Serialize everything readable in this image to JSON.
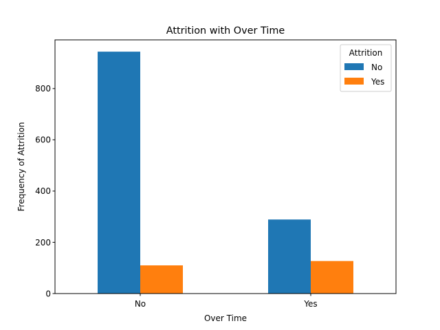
{
  "chart_data": {
    "type": "bar",
    "title": "Attrition with Over Time",
    "xlabel": "Over Time",
    "ylabel": "Frequency of Attrition",
    "categories": [
      "No",
      "Yes"
    ],
    "series": [
      {
        "name": "No",
        "values": [
          944,
          289
        ],
        "color": "#1f77b4"
      },
      {
        "name": "Yes",
        "values": [
          110,
          127
        ],
        "color": "#ff7f0e"
      }
    ],
    "ylim": [
      0,
      990
    ],
    "yticks": [
      0,
      200,
      400,
      600,
      800
    ],
    "grid": false,
    "legend": {
      "title": "Attrition",
      "placement": "top-right"
    }
  }
}
